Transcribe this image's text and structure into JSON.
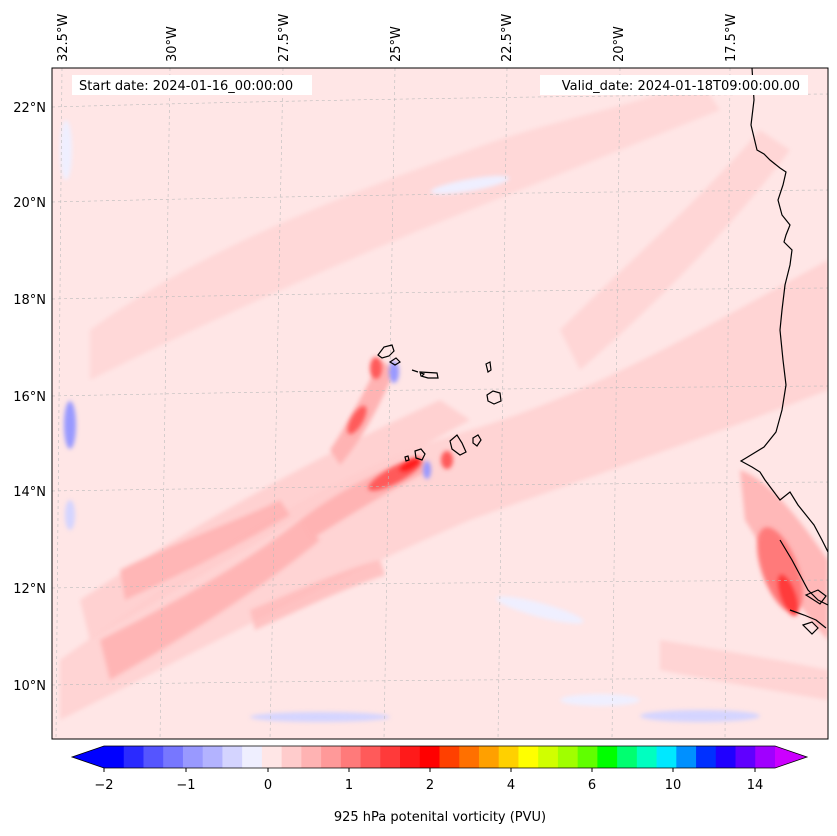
{
  "header": {
    "start_date": "Start date: 2024-01-16_00:00:00",
    "valid_date": "Valid_date: 2024-01-18T09:00:00.00"
  },
  "longitude_labels": [
    "32.5°W",
    "30°W",
    "27.5°W",
    "25°W",
    "22.5°W",
    "20°W",
    "17.5°W"
  ],
  "latitude_labels": [
    "22°N",
    "20°N",
    "18°N",
    "16°N",
    "14°N",
    "12°N",
    "10°N"
  ],
  "colorbar": {
    "label": "925 hPa potenital vorticity (PVU)",
    "tick_labels": [
      "−2",
      "−1",
      "0",
      "1",
      "2",
      "4",
      "6",
      "10",
      "14"
    ],
    "colors": [
      "#0000ff",
      "#2a2aff",
      "#5555ff",
      "#7777ff",
      "#9999ff",
      "#b3b3ff",
      "#d4d4ff",
      "#efefff",
      "#ffe6e6",
      "#ffcccc",
      "#ffb3b3",
      "#ff9999",
      "#ff7a7a",
      "#ff5a5a",
      "#ff3a3a",
      "#ff1a1a",
      "#ff0000",
      "#ff4000",
      "#ff7000",
      "#ffa000",
      "#ffd000",
      "#ffff00",
      "#d0ff00",
      "#a0ff00",
      "#60ff00",
      "#00ff00",
      "#00ff70",
      "#00ffc0",
      "#00e8ff",
      "#0090ff",
      "#0030ff",
      "#2000ff",
      "#6000ff",
      "#a000ff"
    ],
    "under_color": "#0000ff",
    "over_color": "#cc00ff"
  }
}
